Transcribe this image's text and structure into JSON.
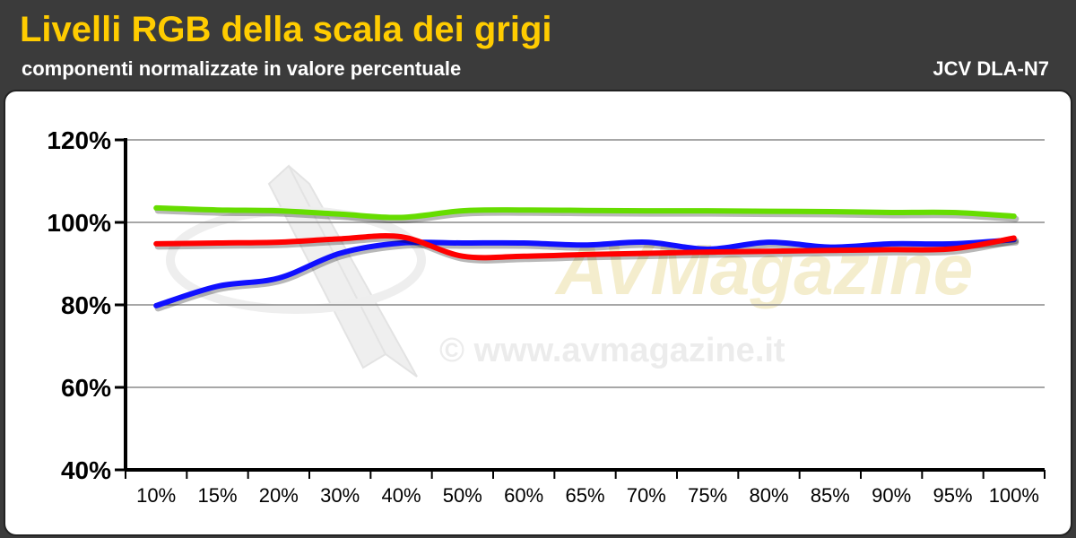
{
  "header": {
    "title": "Livelli RGB della scala dei grigi",
    "subtitle": "componenti normalizzate in valore percentuale",
    "device": "JCV DLA-N7"
  },
  "watermark": {
    "logo_text": "AVMagazine",
    "url_text": "© www.avmagazine.it"
  },
  "chart_data": {
    "type": "line",
    "title": "Livelli RGB della scala dei grigi",
    "subtitle": "componenti normalizzate in valore percentuale",
    "categories": [
      "10%",
      "15%",
      "20%",
      "30%",
      "40%",
      "50%",
      "60%",
      "65%",
      "70%",
      "75%",
      "80%",
      "85%",
      "90%",
      "95%",
      "100%"
    ],
    "ylim": [
      40,
      120
    ],
    "yticks": [
      "40%",
      "60%",
      "80%",
      "100%",
      "120%"
    ],
    "ytick_values": [
      40,
      60,
      80,
      100,
      120
    ],
    "grid": true,
    "legend": "none",
    "series": [
      {
        "color": "#66dd00",
        "values": [
          103.5,
          103,
          102.8,
          102,
          101.2,
          102.8,
          103,
          102.9,
          102.8,
          102.8,
          102.7,
          102.6,
          102.4,
          102.4,
          101.5
        ]
      },
      {
        "color": "#1010ff",
        "values": [
          79.8,
          84.5,
          86.5,
          92.5,
          95,
          95,
          95,
          94.5,
          95.2,
          93.5,
          95.2,
          94,
          94.8,
          94.8,
          95.8
        ]
      },
      {
        "color": "#ff0000",
        "values": [
          94.8,
          95,
          95.2,
          96,
          96.5,
          91.8,
          91.8,
          92.2,
          92.5,
          92.8,
          93,
          93.2,
          93.4,
          93.6,
          96.2
        ]
      }
    ]
  }
}
